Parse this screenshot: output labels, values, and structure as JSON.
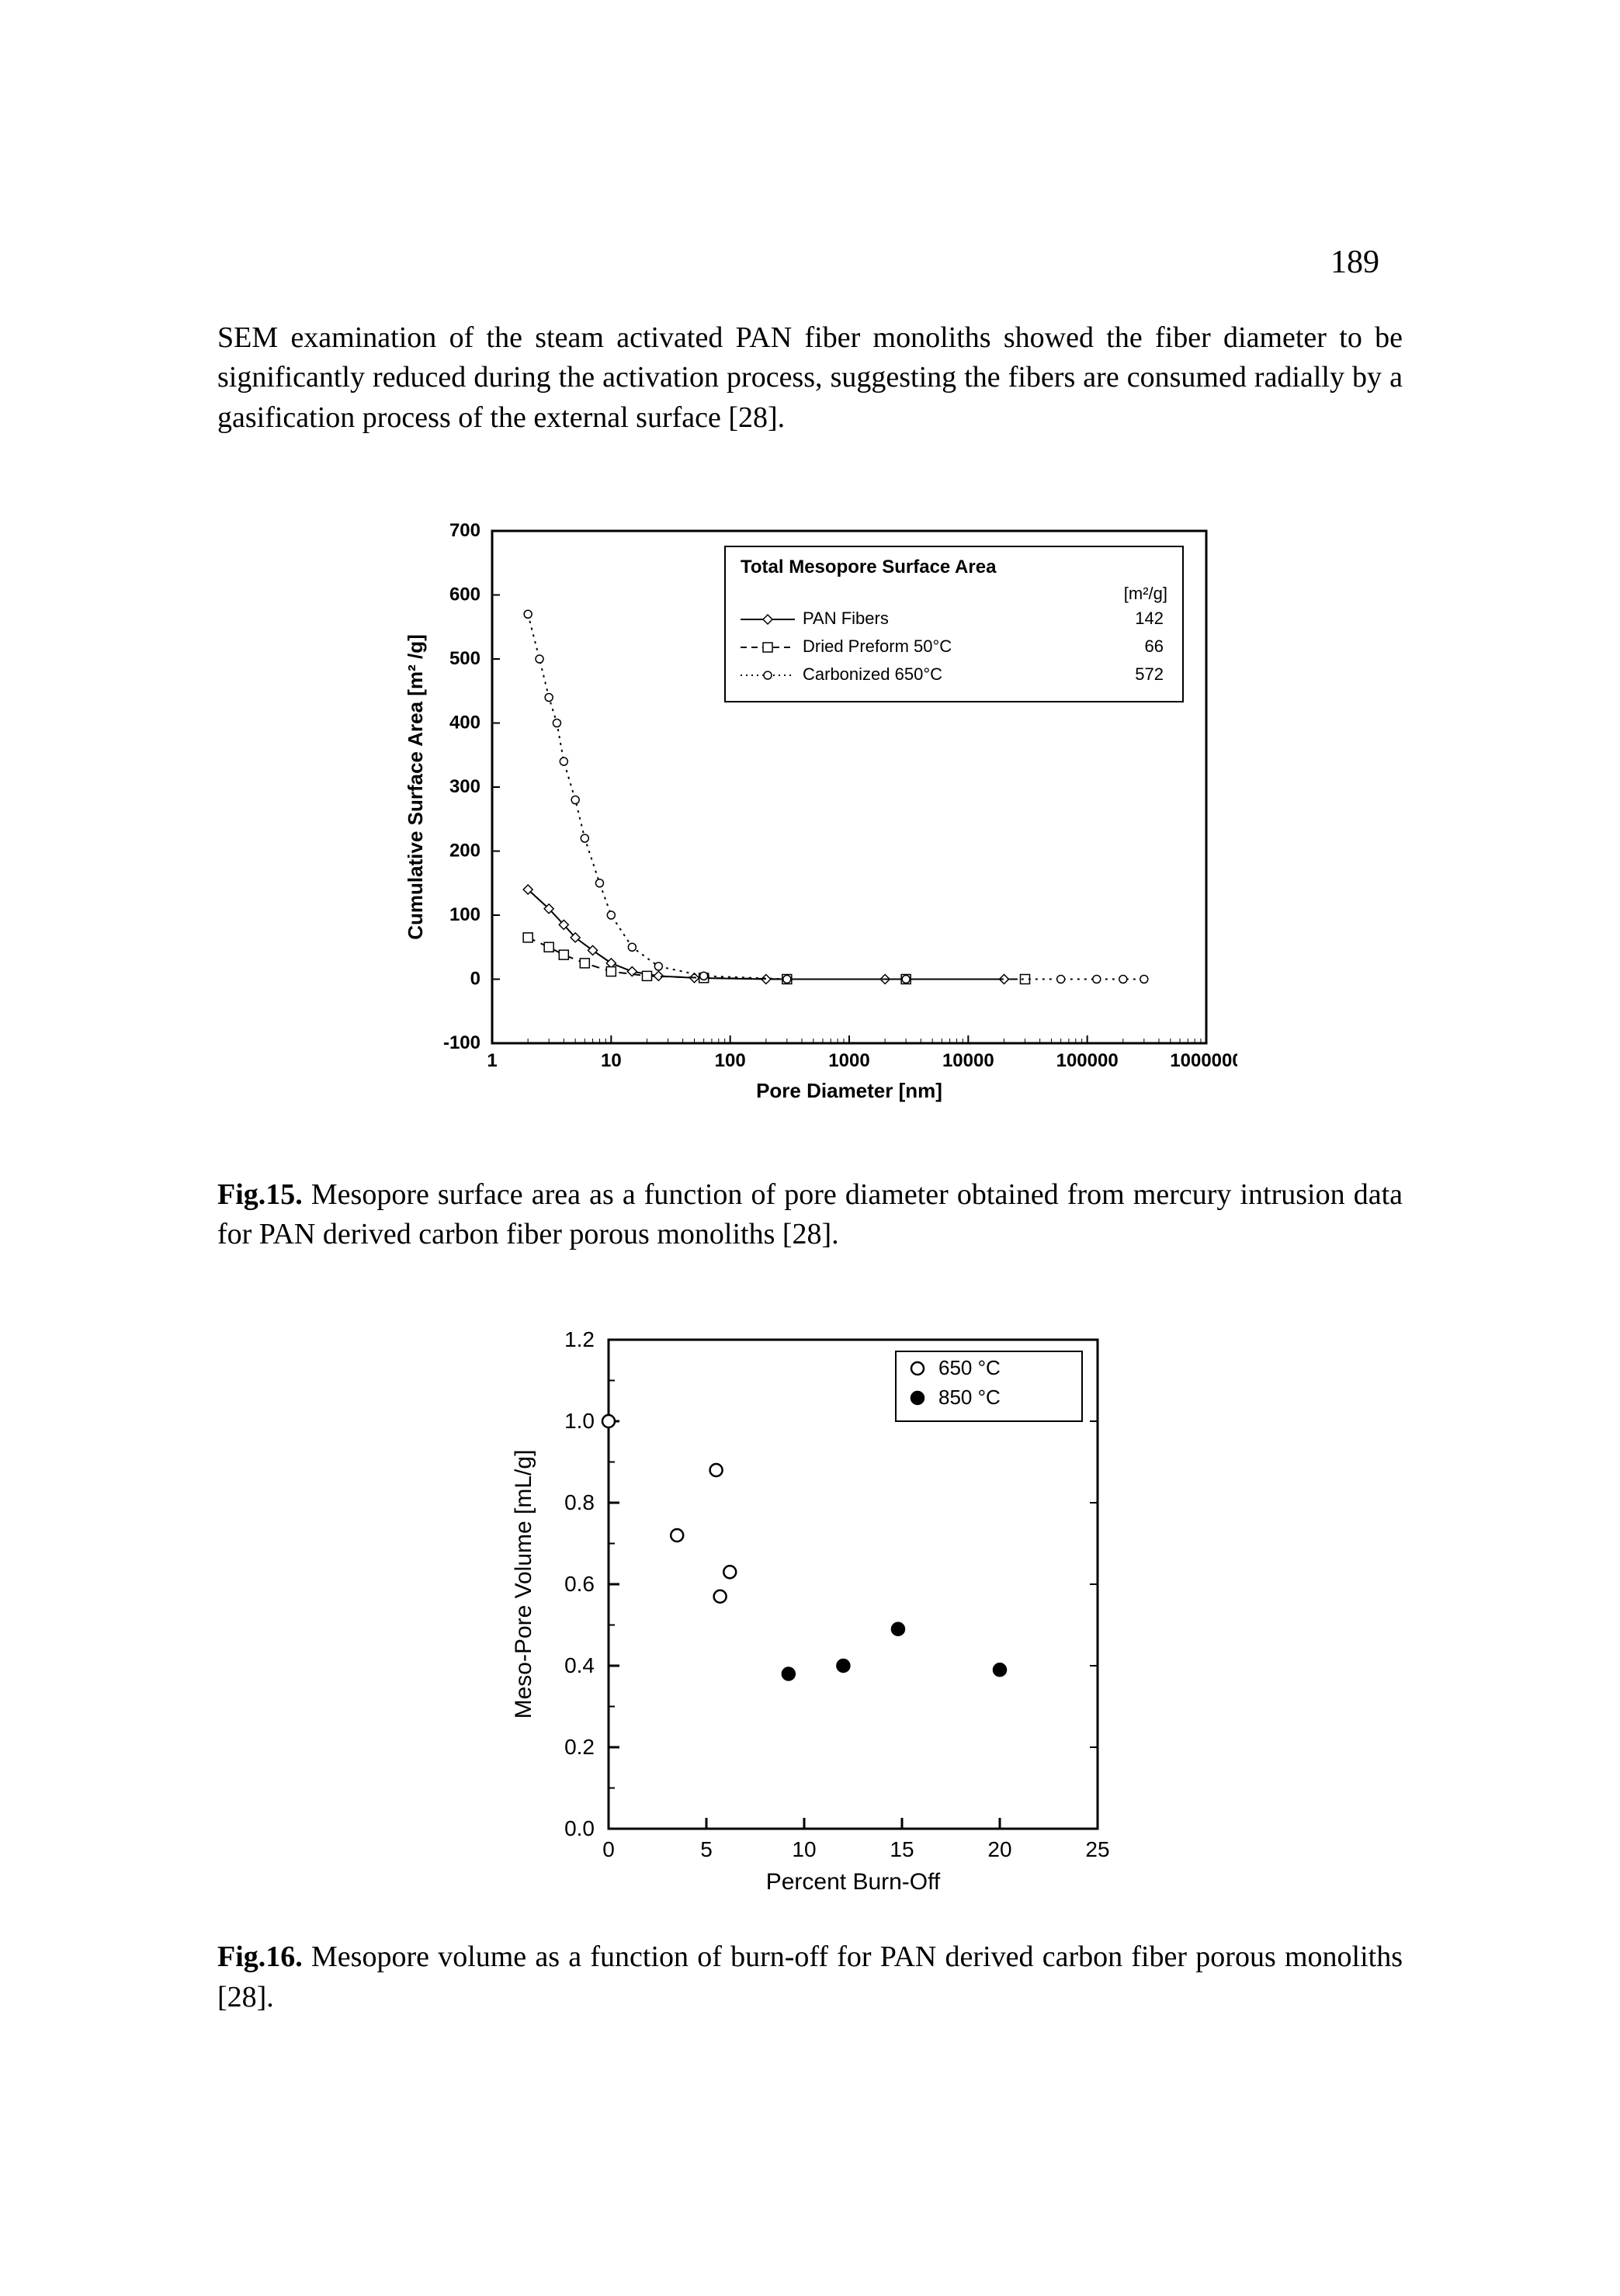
{
  "page_number": "189",
  "paragraph1": "SEM examination of the steam activated PAN fiber monoliths showed the fiber diameter to be significantly reduced during the activation process, suggesting the fibers are consumed radially by a gasification process of the external surface [28].",
  "fig15": {
    "type": "line-log-x",
    "ylabel": "Cumulative Surface Area [m² /g]",
    "xlabel": "Pore Diameter [nm]",
    "legend_title": "Total Mesopore Surface Area",
    "legend_unit": "[m²/g]",
    "ylim": [
      -100,
      700
    ],
    "ytick_step": 100,
    "xticks_log": [
      1,
      10,
      100,
      1000,
      10000,
      100000,
      1000000
    ],
    "xtick_labels": [
      "1",
      "10",
      "100",
      "1000",
      "10000",
      "100000",
      "1000000"
    ],
    "plot_border_color": "#000000",
    "background_color": "#ffffff",
    "axis_font_size_pt": 11,
    "label_font_size_pt": 12,
    "series": [
      {
        "name": "PAN Fibers",
        "value_label": "142",
        "line_style": "solid",
        "marker": "diamond-open",
        "marker_size": 6,
        "color": "#000000",
        "data": [
          {
            "x": 2,
            "y": 140
          },
          {
            "x": 3,
            "y": 110
          },
          {
            "x": 4,
            "y": 85
          },
          {
            "x": 5,
            "y": 65
          },
          {
            "x": 7,
            "y": 45
          },
          {
            "x": 10,
            "y": 25
          },
          {
            "x": 15,
            "y": 12
          },
          {
            "x": 25,
            "y": 5
          },
          {
            "x": 50,
            "y": 2
          },
          {
            "x": 200,
            "y": 0
          },
          {
            "x": 2000,
            "y": 0
          },
          {
            "x": 20000,
            "y": 0
          }
        ]
      },
      {
        "name": "Dried Preform 50°C",
        "value_label": "66",
        "line_style": "dashed",
        "marker": "square-open",
        "marker_size": 6,
        "color": "#000000",
        "data": [
          {
            "x": 2,
            "y": 65
          },
          {
            "x": 3,
            "y": 50
          },
          {
            "x": 4,
            "y": 38
          },
          {
            "x": 6,
            "y": 25
          },
          {
            "x": 10,
            "y": 12
          },
          {
            "x": 20,
            "y": 5
          },
          {
            "x": 60,
            "y": 2
          },
          {
            "x": 300,
            "y": 0
          },
          {
            "x": 3000,
            "y": 0
          },
          {
            "x": 30000,
            "y": 0
          }
        ]
      },
      {
        "name": "Carbonized 650°C",
        "value_label": "572",
        "line_style": "dotted",
        "marker": "dot-open",
        "marker_size": 5,
        "color": "#000000",
        "data": [
          {
            "x": 2,
            "y": 570
          },
          {
            "x": 2.5,
            "y": 500
          },
          {
            "x": 3,
            "y": 440
          },
          {
            "x": 3.5,
            "y": 400
          },
          {
            "x": 4,
            "y": 340
          },
          {
            "x": 5,
            "y": 280
          },
          {
            "x": 6,
            "y": 220
          },
          {
            "x": 8,
            "y": 150
          },
          {
            "x": 10,
            "y": 100
          },
          {
            "x": 15,
            "y": 50
          },
          {
            "x": 25,
            "y": 20
          },
          {
            "x": 60,
            "y": 5
          },
          {
            "x": 300,
            "y": 0
          },
          {
            "x": 3000,
            "y": 0
          },
          {
            "x": 60000,
            "y": 0
          },
          {
            "x": 120000,
            "y": 0
          },
          {
            "x": 200000,
            "y": 0
          },
          {
            "x": 300000,
            "y": 0
          }
        ]
      }
    ]
  },
  "caption15_label": "Fig.15.",
  "caption15_text": " Mesopore surface area as a function of pore diameter obtained from mercury intrusion data for PAN derived carbon fiber porous monoliths [28].",
  "fig16": {
    "type": "scatter",
    "ylabel": "Meso-Pore Volume [mL/g]",
    "xlabel": "Percent Burn-Off",
    "ylim": [
      0.0,
      1.2
    ],
    "ytick_step": 0.2,
    "xlim": [
      0,
      25
    ],
    "xtick_step": 5,
    "plot_border_color": "#000000",
    "background_color": "#ffffff",
    "axis_font_size_pt": 12,
    "label_font_size_pt": 13,
    "series": [
      {
        "name": "650 °C",
        "marker": "circle-open",
        "marker_size": 8,
        "color": "#000000",
        "fill": "none",
        "data": [
          {
            "x": 0,
            "y": 1.0
          },
          {
            "x": 3.5,
            "y": 0.72
          },
          {
            "x": 5.5,
            "y": 0.88
          },
          {
            "x": 6.2,
            "y": 0.63
          },
          {
            "x": 5.7,
            "y": 0.57
          }
        ]
      },
      {
        "name": "850 °C",
        "marker": "circle-filled",
        "marker_size": 8,
        "color": "#000000",
        "fill": "#000000",
        "data": [
          {
            "x": 9.2,
            "y": 0.38
          },
          {
            "x": 12.0,
            "y": 0.4
          },
          {
            "x": 14.8,
            "y": 0.49
          },
          {
            "x": 20.0,
            "y": 0.39
          }
        ]
      }
    ]
  },
  "caption16_label": "Fig.16.",
  "caption16_text": " Mesopore volume as a function of burn-off for PAN derived carbon fiber porous monoliths [28]."
}
